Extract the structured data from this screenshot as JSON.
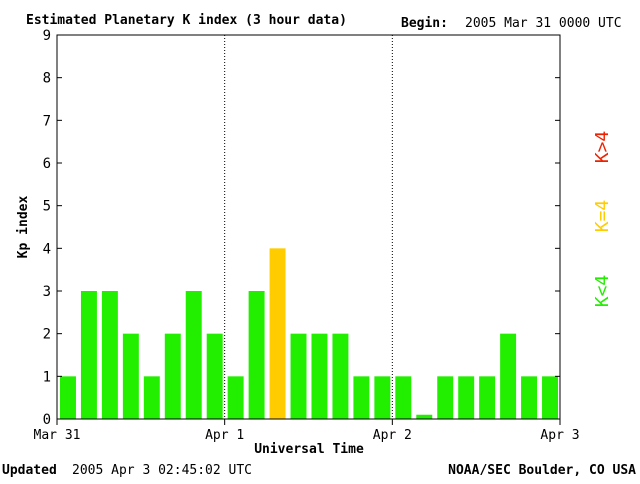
{
  "header": {
    "title": "Estimated Planetary K index (3 hour data)",
    "begin_label": "Begin:",
    "begin_value": "2005 Mar 31 0000 UTC"
  },
  "footer": {
    "updated_label": "Updated",
    "updated_value": "2005 Apr  3 02:45:02 UTC",
    "source": "NOAA/SEC Boulder, CO USA"
  },
  "legend": {
    "high": "K>4",
    "equal": "K=4",
    "low": "K<4"
  },
  "colors": {
    "low": "#22ee00",
    "equal": "#ffcc00",
    "high": "#ee2200",
    "axis": "#000000"
  },
  "chart_data": {
    "type": "bar",
    "title": "Estimated Planetary K index (3 hour data)",
    "xlabel": "Universal Time",
    "ylabel": "Kp index",
    "ylim": [
      0,
      9
    ],
    "y_ticks": [
      "0",
      "1",
      "2",
      "3",
      "4",
      "5",
      "6",
      "7",
      "8",
      "9"
    ],
    "x_ticks": [
      "Mar 31",
      "Apr 1",
      "Apr 2",
      "Apr 3"
    ],
    "grid": false,
    "day_separators": true,
    "legend_position": "right",
    "values": [
      1,
      3,
      3,
      2,
      1,
      2,
      3,
      2,
      1,
      3,
      4,
      2,
      2,
      2,
      1,
      1,
      1,
      0.1,
      1,
      1,
      1,
      2,
      1,
      1
    ]
  }
}
